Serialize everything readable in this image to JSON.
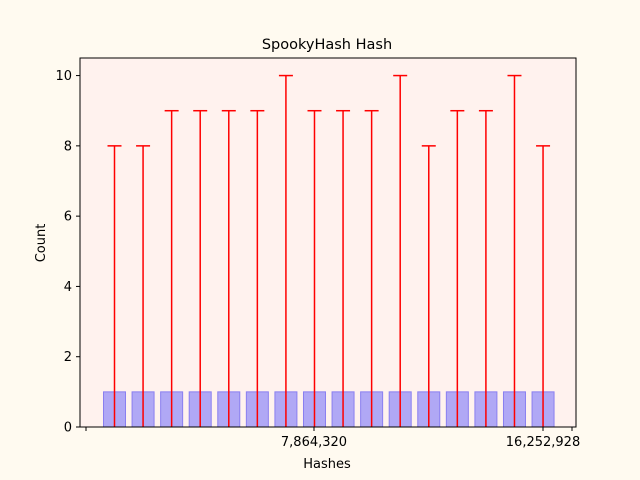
{
  "chart_data": {
    "type": "bar",
    "title": "SpookyHash Hash",
    "xlabel": "Hashes",
    "ylabel": "Count",
    "ylim": [
      0,
      10.5
    ],
    "yticks": [
      0,
      2,
      4,
      6,
      8,
      10
    ],
    "xticks_labeled": [
      "7,864,320",
      "16,252,928"
    ],
    "grid": false,
    "legend": "none",
    "values": [
      1,
      1,
      1,
      1,
      1,
      1,
      1,
      1,
      1,
      1,
      1,
      1,
      1,
      1,
      1,
      1
    ],
    "error_upper": [
      8,
      8,
      9,
      9,
      9,
      9,
      10,
      9,
      9,
      9,
      10,
      8,
      9,
      9,
      10,
      8
    ],
    "colors": {
      "bar_fill": "#b0a8f5",
      "bar_edge": "#8a7ff0",
      "error_bar": "#ff0000",
      "plot_background": "#fff2ee",
      "figure_background": "#fffaf0"
    }
  }
}
